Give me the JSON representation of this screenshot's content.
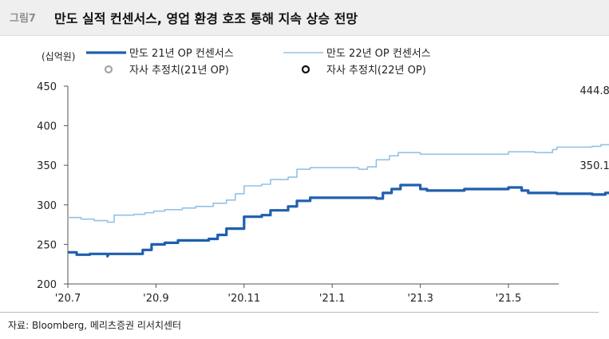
{
  "header": {
    "figure_no": "그림7",
    "title": "만도 실적 컨센서스, 영업 환경 호조 통해 지속 상승 전망"
  },
  "unit_label": "(십억원)",
  "source": "자료: Bloomberg, 메리츠증권 리서치센터",
  "colors": {
    "op21": "#1f5fae",
    "op22": "#92c2e6",
    "est21": "#a6a6a6",
    "est22": "#111111",
    "arrow21": "#b4b4b4",
    "arrow22": "#333333"
  },
  "chart_data": {
    "type": "line",
    "ylim": [
      200,
      450
    ],
    "yticks": [
      "200",
      "250",
      "300",
      "350",
      "400",
      "450"
    ],
    "xticks": [
      "'20.7",
      "'20.9",
      "'20.11",
      "'21.1",
      "'21.3",
      "'21.5"
    ],
    "legend": [
      {
        "name": "만도 21년 OP 컨센서스",
        "kind": "line-thick"
      },
      {
        "name": "만도 22년 OP 컨센서스",
        "kind": "line-thin"
      },
      {
        "name": "자사 추정치(21년 OP)",
        "kind": "marker-gray"
      },
      {
        "name": "자사 추정치(22년 OP)",
        "kind": "marker-black"
      }
    ],
    "series": [
      {
        "name": "만도 21년 OP 컨센서스",
        "points": [
          [
            0,
            240
          ],
          [
            0.2,
            240
          ],
          [
            0.2,
            237
          ],
          [
            0.5,
            237
          ],
          [
            0.5,
            238
          ],
          [
            0.9,
            238
          ],
          [
            0.9,
            235
          ],
          [
            0.93,
            238
          ],
          [
            1.7,
            238
          ],
          [
            1.7,
            243
          ],
          [
            1.9,
            243
          ],
          [
            1.9,
            250
          ],
          [
            2.2,
            250
          ],
          [
            2.2,
            252
          ],
          [
            2.5,
            252
          ],
          [
            2.5,
            255
          ],
          [
            3.2,
            255
          ],
          [
            3.2,
            257
          ],
          [
            3.4,
            257
          ],
          [
            3.4,
            262
          ],
          [
            3.6,
            262
          ],
          [
            3.6,
            270
          ],
          [
            4.0,
            270
          ],
          [
            4.0,
            285
          ],
          [
            4.4,
            285
          ],
          [
            4.4,
            287
          ],
          [
            4.6,
            287
          ],
          [
            4.6,
            293
          ],
          [
            5.0,
            293
          ],
          [
            5.0,
            298
          ],
          [
            5.2,
            298
          ],
          [
            5.2,
            305
          ],
          [
            5.5,
            305
          ],
          [
            5.5,
            309
          ],
          [
            7.0,
            309
          ],
          [
            7.0,
            308
          ],
          [
            7.15,
            308
          ],
          [
            7.15,
            315
          ],
          [
            7.35,
            315
          ],
          [
            7.35,
            320
          ],
          [
            7.55,
            320
          ],
          [
            7.55,
            325
          ],
          [
            8.0,
            325
          ],
          [
            8.0,
            320
          ],
          [
            8.15,
            320
          ],
          [
            8.15,
            318
          ],
          [
            9.0,
            318
          ],
          [
            9.0,
            320
          ],
          [
            10.0,
            320
          ],
          [
            10.0,
            322
          ],
          [
            10.3,
            322
          ],
          [
            10.3,
            318
          ],
          [
            10.45,
            318
          ],
          [
            10.45,
            315
          ],
          [
            11.1,
            315
          ],
          [
            11.1,
            314
          ],
          [
            11.9,
            314
          ],
          [
            11.9,
            313
          ],
          [
            12.2,
            313
          ],
          [
            12.2,
            315
          ],
          [
            12.3,
            315
          ]
        ]
      },
      {
        "name": "만도 22년 OP 컨센서스",
        "points": [
          [
            0,
            284
          ],
          [
            0.3,
            284
          ],
          [
            0.3,
            282
          ],
          [
            0.6,
            282
          ],
          [
            0.6,
            280
          ],
          [
            0.9,
            280
          ],
          [
            0.9,
            278
          ],
          [
            1.05,
            278
          ],
          [
            1.05,
            287
          ],
          [
            1.5,
            287
          ],
          [
            1.5,
            288
          ],
          [
            1.75,
            288
          ],
          [
            1.75,
            290
          ],
          [
            1.95,
            290
          ],
          [
            1.95,
            292
          ],
          [
            2.2,
            292
          ],
          [
            2.2,
            294
          ],
          [
            2.6,
            294
          ],
          [
            2.6,
            296
          ],
          [
            2.9,
            296
          ],
          [
            2.9,
            298
          ],
          [
            3.3,
            298
          ],
          [
            3.3,
            302
          ],
          [
            3.6,
            302
          ],
          [
            3.6,
            306
          ],
          [
            3.8,
            306
          ],
          [
            3.8,
            314
          ],
          [
            4.0,
            314
          ],
          [
            4.0,
            324
          ],
          [
            4.4,
            324
          ],
          [
            4.4,
            326
          ],
          [
            4.6,
            326
          ],
          [
            4.6,
            332
          ],
          [
            5.0,
            332
          ],
          [
            5.0,
            335
          ],
          [
            5.2,
            335
          ],
          [
            5.2,
            345
          ],
          [
            5.5,
            345
          ],
          [
            5.5,
            347
          ],
          [
            6.6,
            347
          ],
          [
            6.6,
            345
          ],
          [
            6.8,
            345
          ],
          [
            6.8,
            348
          ],
          [
            7.0,
            348
          ],
          [
            7.0,
            357
          ],
          [
            7.3,
            357
          ],
          [
            7.3,
            362
          ],
          [
            7.5,
            362
          ],
          [
            7.5,
            366
          ],
          [
            8.0,
            366
          ],
          [
            8.0,
            364
          ],
          [
            10.0,
            364
          ],
          [
            10.0,
            367
          ],
          [
            10.6,
            367
          ],
          [
            10.6,
            366
          ],
          [
            11.0,
            366
          ],
          [
            11.0,
            370
          ],
          [
            11.1,
            370
          ],
          [
            11.1,
            373
          ],
          [
            11.9,
            373
          ],
          [
            11.9,
            374
          ],
          [
            12.1,
            374
          ],
          [
            12.1,
            376
          ],
          [
            12.3,
            376
          ]
        ]
      }
    ],
    "x_index_of_ticks": [
      0,
      2,
      4,
      6,
      8,
      10
    ],
    "x_max": 12.3,
    "estimates": [
      {
        "name": "자사 추정치(21년 OP)",
        "x": 12.55,
        "y": 350.1,
        "label": "350.1",
        "from_y": 314
      },
      {
        "name": "자사 추정치(22년 OP)",
        "x": 12.55,
        "y": 444.8,
        "label": "444.8",
        "from_y": 376
      }
    ]
  }
}
